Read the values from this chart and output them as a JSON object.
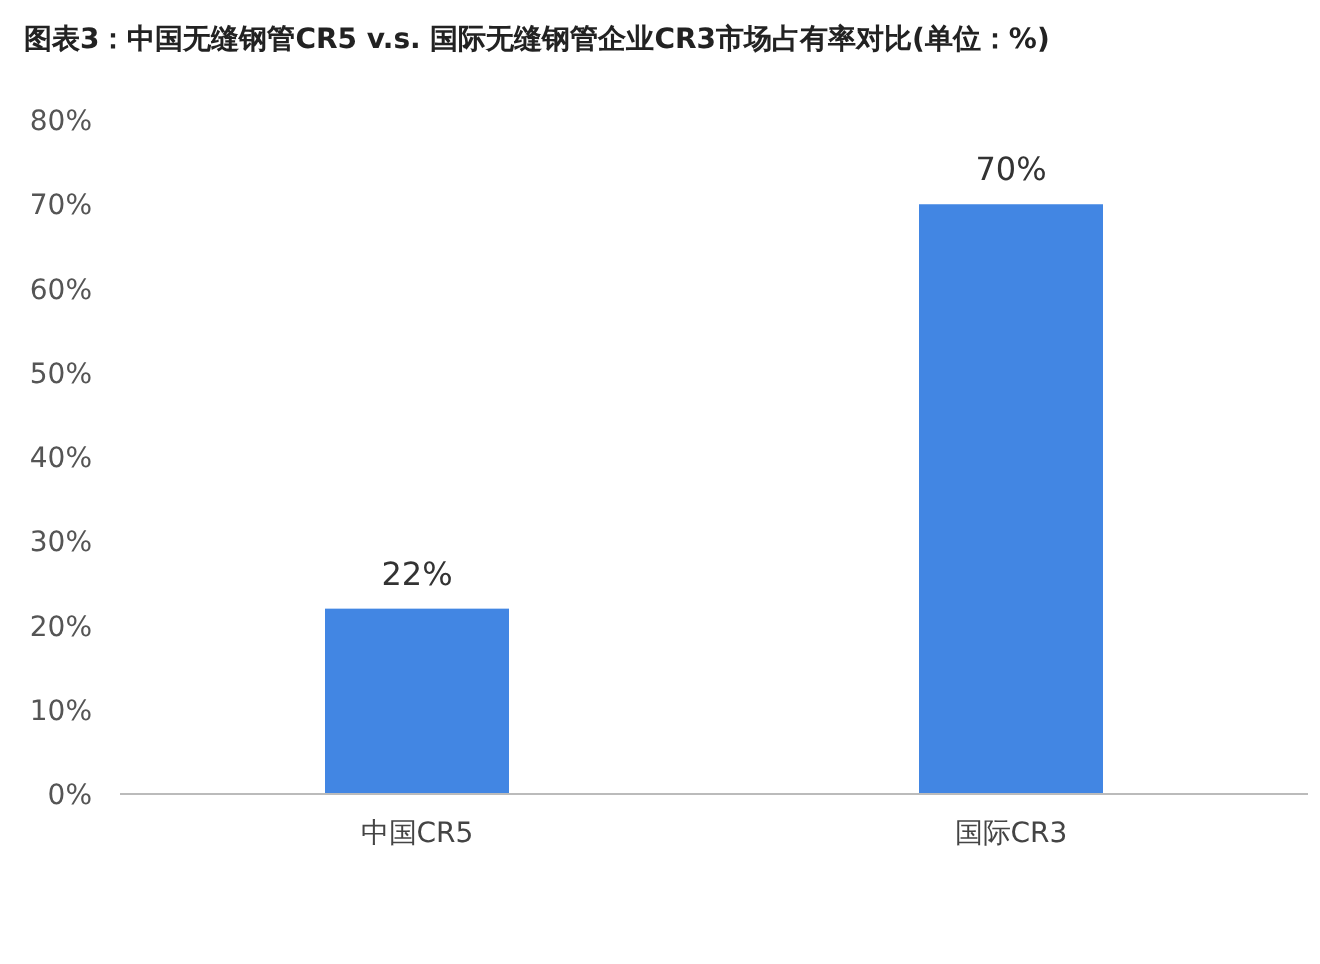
{
  "chart_data": {
    "type": "bar",
    "title": "图表3：中国无缝钢管CR5 v.s. 国际无缝钢管企业CR3市场占有率对比(单位：%)",
    "categories": [
      "中国CR5",
      "国际CR3"
    ],
    "values": [
      22,
      70
    ],
    "value_labels": [
      "22%",
      "70%"
    ],
    "color": "#4286e3",
    "ylim": [
      0,
      80
    ],
    "yticks": [
      {
        "value": 0,
        "label": "0%"
      },
      {
        "value": 10,
        "label": "10%"
      },
      {
        "value": 20,
        "label": "20%"
      },
      {
        "value": 30,
        "label": "30%"
      },
      {
        "value": 40,
        "label": "40%"
      },
      {
        "value": 50,
        "label": "50%"
      },
      {
        "value": 60,
        "label": "60%"
      },
      {
        "value": 70,
        "label": "70%"
      },
      {
        "value": 80,
        "label": "80%"
      }
    ]
  }
}
